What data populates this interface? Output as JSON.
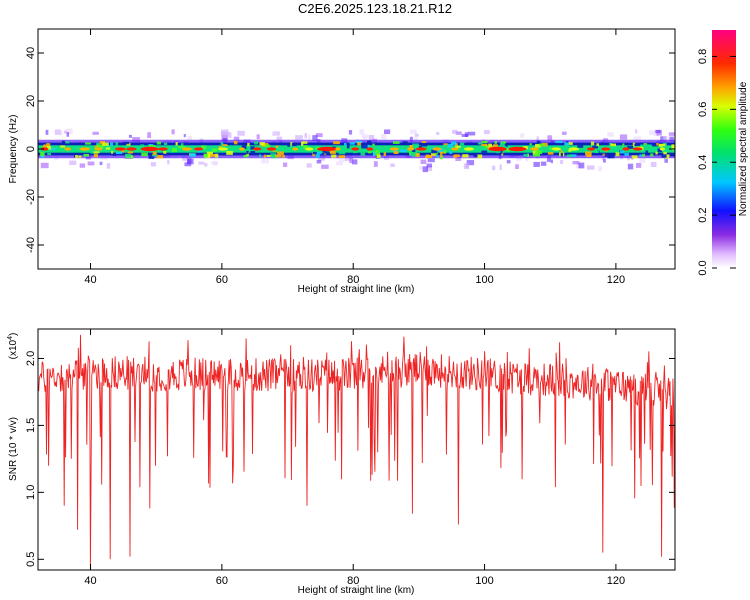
{
  "title": "C2E6.2025.123.18.21.R12",
  "chart_data": [
    {
      "type": "heatmap",
      "xlabel": "Height of straight line (km)",
      "ylabel": "Frequency (Hz)",
      "xlim": [
        32,
        129
      ],
      "ylim": [
        -50,
        50
      ],
      "xticks": [
        40,
        60,
        80,
        100,
        120
      ],
      "yticks": [
        -40,
        -20,
        0,
        20,
        40
      ],
      "band_center_hz": 0,
      "band_halfwidth_hz": 7,
      "peak_heights_km": [
        49,
        76,
        102,
        105
      ],
      "colorbar": {
        "label": "Normalized spectral amplitude",
        "range": [
          0,
          0.9
        ],
        "ticks": [
          0.0,
          0.2,
          0.4,
          0.6,
          0.8
        ]
      }
    },
    {
      "type": "line",
      "xlabel": "Height of straight line (km)",
      "ylabel": "SNR (10 * v/v)",
      "y_multiplier": "(x10^4)",
      "xlim": [
        32,
        129
      ],
      "ylim": [
        0.42,
        2.22
      ],
      "xticks": [
        40,
        60,
        80,
        100,
        120
      ],
      "yticks": [
        0.5,
        1.0,
        1.5,
        2.0
      ],
      "ytick_labels": [
        "0.5",
        "1.0",
        "1.5",
        "2.0"
      ],
      "color": "#ee2222",
      "baseline": [
        [
          32,
          1.85
        ],
        [
          40,
          1.9
        ],
        [
          50,
          1.88
        ],
        [
          60,
          1.88
        ],
        [
          70,
          1.87
        ],
        [
          80,
          1.88
        ],
        [
          90,
          1.92
        ],
        [
          100,
          1.88
        ],
        [
          110,
          1.84
        ],
        [
          120,
          1.8
        ],
        [
          129,
          1.73
        ]
      ],
      "notable_dips": [
        [
          36,
          0.9
        ],
        [
          38,
          0.72
        ],
        [
          40,
          0.42
        ],
        [
          43,
          0.5
        ],
        [
          46,
          0.52
        ],
        [
          49,
          0.88
        ],
        [
          73,
          0.9
        ],
        [
          89,
          0.84
        ],
        [
          96,
          0.76
        ],
        [
          118,
          0.55
        ],
        [
          127,
          0.52
        ]
      ]
    }
  ]
}
